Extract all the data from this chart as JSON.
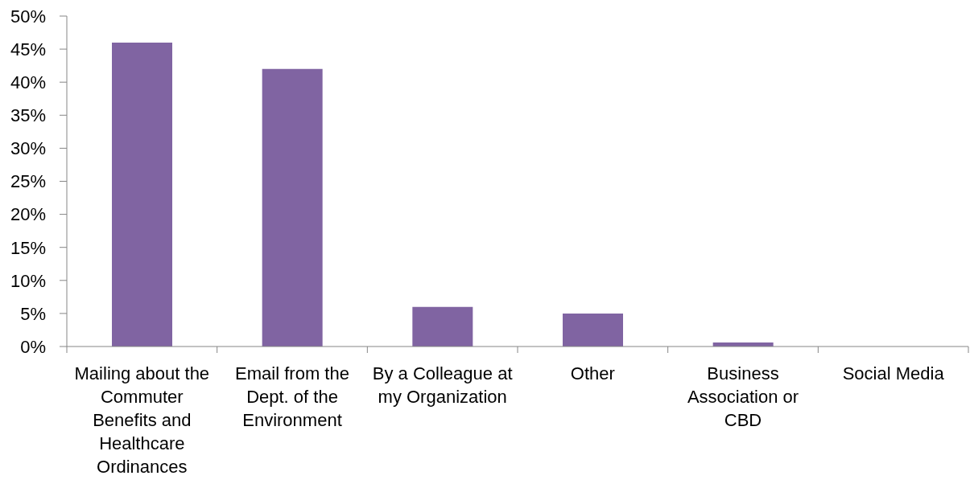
{
  "chart_data": {
    "type": "bar",
    "categories": [
      "Mailing about the Commuter Benefits and Healthcare Ordinances",
      "Email from the Dept. of the Environment",
      "By a Colleague at my Organization",
      "Other",
      "Business Association or CBD",
      "Social Media"
    ],
    "values": [
      46,
      42,
      6,
      5,
      0.6,
      0
    ],
    "color": "#8064a2",
    "ylim": [
      0,
      50
    ],
    "yticks": [
      {
        "value": 0,
        "label": "0%"
      },
      {
        "value": 5,
        "label": "5%"
      },
      {
        "value": 10,
        "label": "10%"
      },
      {
        "value": 15,
        "label": "15%"
      },
      {
        "value": 20,
        "label": "20%"
      },
      {
        "value": 25,
        "label": "25%"
      },
      {
        "value": 30,
        "label": "30%"
      },
      {
        "value": 35,
        "label": "35%"
      },
      {
        "value": 40,
        "label": "40%"
      },
      {
        "value": 45,
        "label": "45%"
      },
      {
        "value": 50,
        "label": "50%"
      }
    ]
  }
}
